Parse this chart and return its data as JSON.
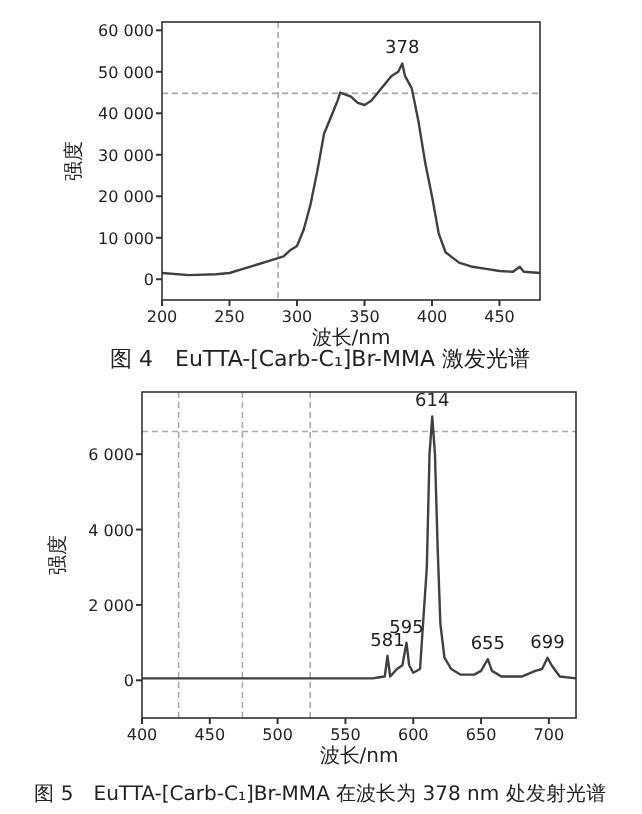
{
  "chart_data": [
    {
      "type": "line",
      "title": "图 4　EuTTA-[Carb-C₁]Br-MMA 激发光谱",
      "xlabel": "波长/nm",
      "ylabel": "强度",
      "xlim": [
        200,
        480
      ],
      "xticks": [
        200,
        250,
        300,
        350,
        400,
        450
      ],
      "ylim": [
        -5000,
        62000
      ],
      "yticks": [
        0,
        {
          "value": 10000,
          "label": "10 000"
        },
        {
          "value": 20000,
          "label": "20 000"
        },
        {
          "value": 30000,
          "label": "30 000"
        },
        {
          "value": 40000,
          "label": "40 000"
        },
        {
          "value": 50000,
          "label": "50 000"
        },
        {
          "value": 60000,
          "label": "60 000"
        }
      ],
      "grid": false,
      "series": [
        {
          "color": "#404040",
          "x": [
            200,
            220,
            240,
            250,
            260,
            270,
            280,
            290,
            295,
            300,
            305,
            310,
            315,
            320,
            325,
            330,
            332,
            340,
            345,
            350,
            355,
            360,
            365,
            370,
            375,
            378,
            380,
            385,
            390,
            395,
            400,
            405,
            410,
            420,
            430,
            440,
            450,
            460,
            465,
            468,
            480
          ],
          "values": [
            1500,
            1000,
            1200,
            1500,
            2500,
            3500,
            4500,
            5500,
            7000,
            8000,
            12000,
            18000,
            26000,
            35000,
            39000,
            43000,
            45000,
            44000,
            42500,
            42000,
            43000,
            45000,
            47000,
            49000,
            50000,
            52000,
            49000,
            46000,
            38000,
            28000,
            20000,
            11000,
            6500,
            4000,
            3000,
            2500,
            2000,
            1800,
            3000,
            1800,
            1500
          ]
        }
      ],
      "ref_lines": [
        {
          "axis": "x",
          "value": 286,
          "color": "#aaaaaa",
          "line_style": "dashed"
        },
        {
          "axis": "y",
          "value": 44800,
          "color": "#aaaaaa",
          "line_style": "dashed"
        }
      ],
      "annotations": [
        {
          "text": "378",
          "x": 378,
          "y": 52000
        }
      ]
    },
    {
      "type": "line",
      "title": "图 5　EuTTA-[Carb-C₁]Br-MMA 在波长为 378 nm 处发射光谱",
      "xlabel": "波长/nm",
      "ylabel": "强度",
      "xlim": [
        400,
        720
      ],
      "xticks": [
        400,
        450,
        500,
        550,
        600,
        650,
        700
      ],
      "ylim": [
        -1000,
        7650
      ],
      "yticks": [
        0,
        {
          "value": 2000,
          "label": "2 000"
        },
        {
          "value": 4000,
          "label": "4 000"
        },
        {
          "value": 6000,
          "label": "6 000"
        }
      ],
      "grid": false,
      "series": [
        {
          "color": "#404040",
          "x": [
            400,
            450,
            500,
            550,
            570,
            575,
            579,
            581,
            583,
            588,
            592,
            595,
            597,
            600,
            605,
            610,
            612,
            614,
            616,
            618,
            620,
            623,
            628,
            635,
            645,
            650,
            655,
            658,
            665,
            680,
            690,
            695,
            699,
            702,
            708,
            720
          ],
          "values": [
            50,
            50,
            50,
            50,
            50,
            80,
            100,
            650,
            100,
            300,
            400,
            1000,
            400,
            200,
            300,
            3000,
            6000,
            7000,
            6000,
            3500,
            1500,
            600,
            300,
            150,
            150,
            250,
            560,
            250,
            100,
            100,
            250,
            300,
            600,
            400,
            100,
            50
          ]
        }
      ],
      "ref_lines": [
        {
          "axis": "x",
          "value": 427,
          "color": "#aaaaaa",
          "line_style": "dashed"
        },
        {
          "axis": "x",
          "value": 474,
          "color": "#aaaaaa",
          "line_style": "dashed"
        },
        {
          "axis": "x",
          "value": 524,
          "color": "#aaaaaa",
          "line_style": "dashed"
        },
        {
          "axis": "y",
          "value": 6600,
          "color": "#aaaaaa",
          "line_style": "dashed"
        }
      ],
      "annotations": [
        {
          "text": "581",
          "x": 581,
          "y": 650
        },
        {
          "text": "595",
          "x": 595,
          "y": 1000
        },
        {
          "text": "614",
          "x": 614,
          "y": 7000
        },
        {
          "text": "655",
          "x": 655,
          "y": 560
        },
        {
          "text": "699",
          "x": 699,
          "y": 600
        }
      ]
    }
  ]
}
